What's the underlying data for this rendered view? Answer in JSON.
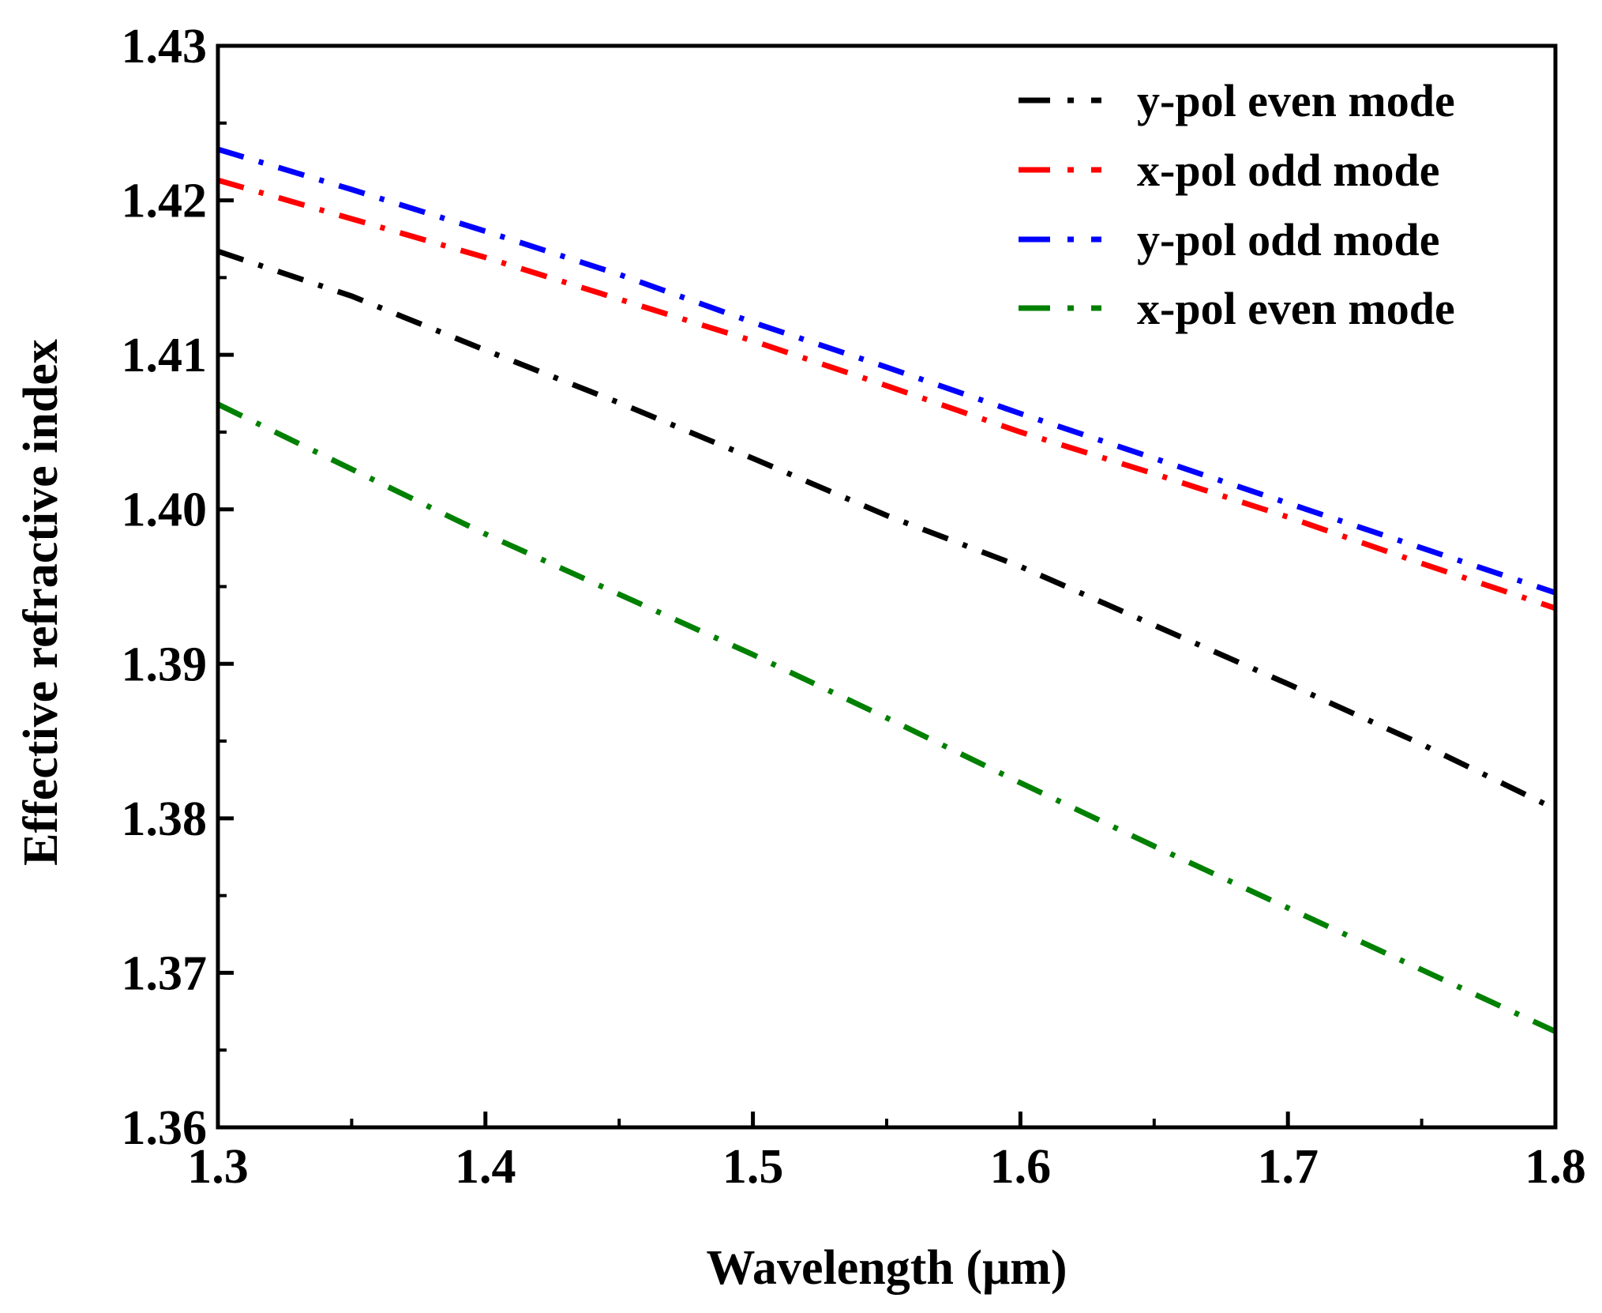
{
  "chart_data": {
    "type": "line",
    "xlabel": "Wavelength (μm)",
    "ylabel": "Effective refractive index",
    "xlim": [
      1.3,
      1.8
    ],
    "ylim": [
      1.36,
      1.43
    ],
    "xticks": [
      "1.3",
      "1.4",
      "1.5",
      "1.6",
      "1.7",
      "1.8"
    ],
    "yticks": [
      "1.36",
      "1.37",
      "1.38",
      "1.39",
      "1.40",
      "1.41",
      "1.42",
      "1.43"
    ],
    "grid": false,
    "legend_position": "top-right",
    "line_style": "dash-dot",
    "series": [
      {
        "name": "y-pol even mode",
        "color": "#000000",
        "x": [
          1.3,
          1.35,
          1.4,
          1.45,
          1.5,
          1.55,
          1.6,
          1.65,
          1.7,
          1.75,
          1.8
        ],
        "y": [
          1.4167,
          1.4138,
          1.4103,
          1.4069,
          1.4033,
          1.3996,
          1.3963,
          1.3925,
          1.3887,
          1.3848,
          1.3806
        ]
      },
      {
        "name": "x-pol odd mode",
        "color": "#ff0000",
        "x": [
          1.3,
          1.35,
          1.4,
          1.45,
          1.5,
          1.55,
          1.6,
          1.65,
          1.7,
          1.75,
          1.8
        ],
        "y": [
          1.4213,
          1.4188,
          1.4163,
          1.4136,
          1.4109,
          1.408,
          1.405,
          1.4023,
          1.3995,
          1.3965,
          1.3936
        ]
      },
      {
        "name": "y-pol odd mode",
        "color": "#0000ff",
        "x": [
          1.3,
          1.35,
          1.4,
          1.45,
          1.5,
          1.55,
          1.6,
          1.65,
          1.7,
          1.75,
          1.8
        ],
        "y": [
          1.4233,
          1.4207,
          1.418,
          1.4152,
          1.4121,
          1.4092,
          1.4062,
          1.4033,
          1.4004,
          1.3975,
          1.3946
        ]
      },
      {
        "name": "x-pol even mode",
        "color": "#008000",
        "x": [
          1.3,
          1.35,
          1.4,
          1.45,
          1.5,
          1.55,
          1.6,
          1.65,
          1.7,
          1.75,
          1.8
        ],
        "y": [
          1.4068,
          1.4026,
          1.3984,
          1.3945,
          1.3906,
          1.3865,
          1.3823,
          1.3782,
          1.3742,
          1.3702,
          1.3662
        ]
      }
    ]
  }
}
